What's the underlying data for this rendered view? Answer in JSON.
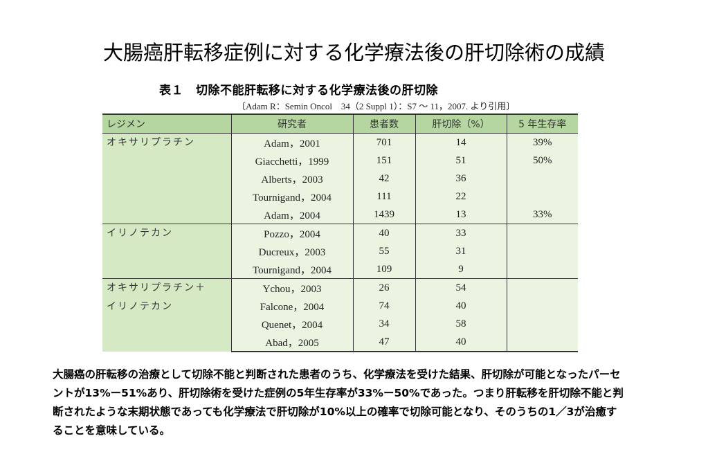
{
  "title": "大腸癌肝転移症例に対する化学療法後の肝切除術の成績",
  "table": {
    "caption_number": "表１",
    "caption_text": "切除不能肝転移に対する化学療法後の肝切除",
    "citation": "〔Adam R：Semin Oncol　34（2 Suppl 1）：S7 ～ 11，2007. より引用〕",
    "headers": [
      "レジメン",
      "研究者",
      "患者数",
      "肝切除（%）",
      "5 年生存率"
    ],
    "groups": [
      {
        "regimen_lines": [
          "オキサリプラチン"
        ],
        "rows": [
          {
            "study": "Adam，2001",
            "patients": "701",
            "resection": "14",
            "survival": "39%"
          },
          {
            "study": "Giacchetti，1999",
            "patients": "151",
            "resection": "51",
            "survival": "50%"
          },
          {
            "study": "Alberts，2003",
            "patients": "42",
            "resection": "36",
            "survival": ""
          },
          {
            "study": "Tournigand，2004",
            "patients": "111",
            "resection": "22",
            "survival": ""
          },
          {
            "study": "Adam，2004",
            "patients": "1439",
            "resection": "13",
            "survival": "33%"
          }
        ]
      },
      {
        "regimen_lines": [
          "イリノテカン"
        ],
        "rows": [
          {
            "study": "Pozzo，2004",
            "patients": "40",
            "resection": "33",
            "survival": ""
          },
          {
            "study": "Ducreux，2003",
            "patients": "55",
            "resection": "31",
            "survival": ""
          },
          {
            "study": "Tournigand，2004",
            "patients": "109",
            "resection": "9",
            "survival": ""
          }
        ]
      },
      {
        "regimen_lines": [
          "オキサリプラチン＋",
          "イリノテカン"
        ],
        "rows": [
          {
            "study": "Ychou，2003",
            "patients": "26",
            "resection": "54",
            "survival": ""
          },
          {
            "study": "Falcone，2004",
            "patients": "74",
            "resection": "40",
            "survival": ""
          },
          {
            "study": "Quenet，2004",
            "patients": "34",
            "resection": "58",
            "survival": ""
          },
          {
            "study": "Abad，2005",
            "patients": "47",
            "resection": "40",
            "survival": ""
          }
        ]
      }
    ]
  },
  "summary": "大腸癌の肝転移の治療として切除不能と判断された患者のうち、化学療法を受けた結果、肝切除が可能となったパーセントが13%ー51%あり、肝切除術を受けた症例の5年生存率が33%ー50%であった。つまり肝転移を肝切除不能と判断されたような末期状態であっても化学療法で肝切除が10%以上の確率で切除可能となり、そのうちの1／3が治癒することを意味している。"
}
